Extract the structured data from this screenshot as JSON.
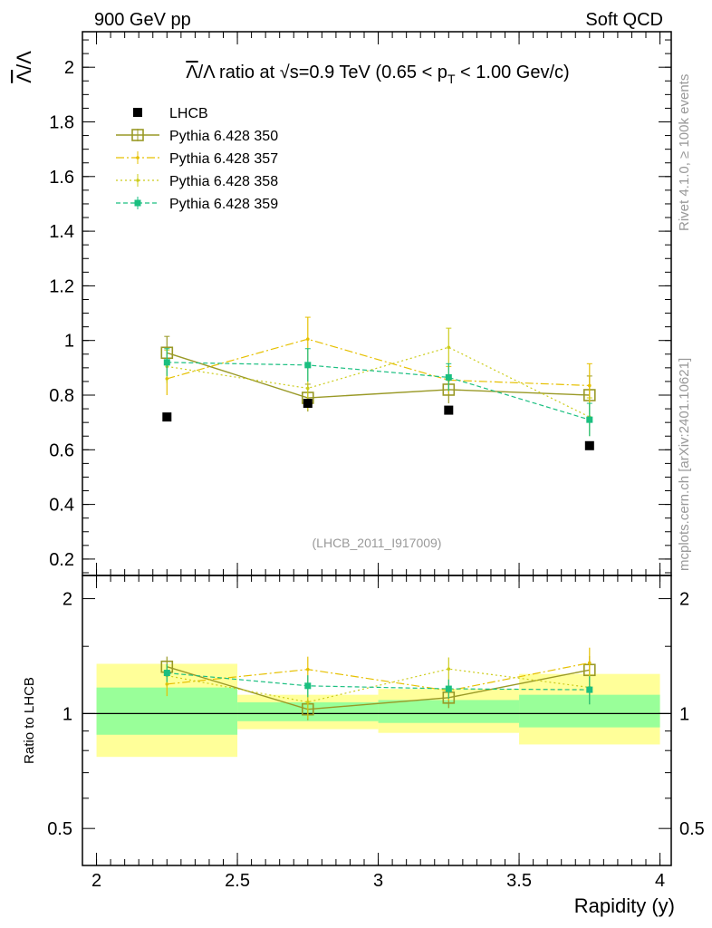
{
  "header": {
    "left": "900 GeV pp",
    "right": "Soft QCD"
  },
  "side_labels": {
    "rivet": "Rivet 4.1.0, ≥ 100k events",
    "mcplots": "mcplots.cern.ch [arXiv:2401.10621]"
  },
  "colors": {
    "data": "#000000",
    "py350": "#999926",
    "py357": "#e6c000",
    "py358": "#cccc1a",
    "py359": "#1abf80",
    "band_inner": "#99ff99",
    "band_outer": "#ffff99"
  },
  "chart_data": {
    "type": "scatter",
    "title": "Λ̅/Λ ratio at √s=0.9 TeV (0.65 < pT < 1.00 GeV/c)",
    "title_parts": {
      "lead": "/Λ ratio at ",
      "sqrt": "√s",
      "mid": "=0.9 TeV (0.65 < p",
      "sub": "T",
      "tail": " < 1.00 Gev/c)"
    },
    "xlabel": "Rapidity (y)",
    "ylabel": "Λ̅/Λ",
    "ylabel_bar": "Λ",
    "ylabel_rest": "/Λ",
    "ratio_ylabel": "Ratio to LHCB",
    "watermark": "(LHCB_2011_I917009)",
    "xlim": [
      1.95,
      4.04
    ],
    "ylim": [
      0.14,
      2.13
    ],
    "ratio_ylim": [
      0.4,
      2.3
    ],
    "x_ticks": [
      2,
      2.5,
      3,
      3.5,
      4
    ],
    "x_tick_labels": [
      "2",
      "2.5",
      "3",
      "3.5",
      "4"
    ],
    "y_ticks": [
      0.2,
      0.4,
      0.6,
      0.8,
      1,
      1.2,
      1.4,
      1.6,
      1.8,
      2
    ],
    "y_tick_labels": [
      "0.2",
      "0.4",
      "0.6",
      "0.8",
      "1",
      "1.2",
      "1.4",
      "1.6",
      "1.8",
      "2"
    ],
    "ratio_ticks": [
      0.5,
      1,
      2
    ],
    "ratio_tick_labels": [
      "0.5",
      "1",
      "2"
    ],
    "bins": [
      [
        2.0,
        2.5
      ],
      [
        2.5,
        3.0
      ],
      [
        3.0,
        3.5
      ],
      [
        3.5,
        4.0
      ]
    ],
    "x": [
      2.25,
      2.75,
      3.25,
      3.75
    ],
    "data": {
      "name": "LHCB",
      "values": [
        0.72,
        0.77,
        0.745,
        0.615
      ]
    },
    "band_inner": [
      [
        0.88,
        1.17
      ],
      [
        0.955,
        1.07
      ],
      [
        0.945,
        1.085
      ],
      [
        0.92,
        1.12
      ]
    ],
    "band_outer": [
      [
        0.77,
        1.35
      ],
      [
        0.91,
        1.12
      ],
      [
        0.89,
        1.16
      ],
      [
        0.83,
        1.27
      ]
    ],
    "series": [
      {
        "name": "Pythia 6.428 350",
        "color_key": "py350",
        "marker": "open-square",
        "dash": "",
        "width": 1.4,
        "values": [
          0.955,
          0.79,
          0.82,
          0.8
        ],
        "errors": [
          0.06,
          0.05,
          0.05,
          0.07
        ]
      },
      {
        "name": "Pythia 6.428 357",
        "color_key": "py357",
        "marker": "small-dot",
        "dash": "9,3,2,3",
        "width": 1.2,
        "values": [
          0.86,
          1.005,
          0.855,
          0.835
        ],
        "errors": [
          0.06,
          0.08,
          0.05,
          0.08
        ]
      },
      {
        "name": "Pythia 6.428 358",
        "color_key": "py358",
        "marker": "small-dot",
        "dash": "2,3",
        "width": 1.2,
        "values": [
          0.905,
          0.825,
          0.975,
          0.72
        ],
        "errors": [
          0.06,
          0.08,
          0.07,
          0.07
        ]
      },
      {
        "name": "Pythia 6.428 359",
        "color_key": "py359",
        "marker": "filled-square",
        "dash": "5,3",
        "width": 1.2,
        "values": [
          0.92,
          0.91,
          0.865,
          0.71
        ],
        "errors": [
          0.05,
          0.06,
          0.05,
          0.06
        ]
      }
    ]
  }
}
